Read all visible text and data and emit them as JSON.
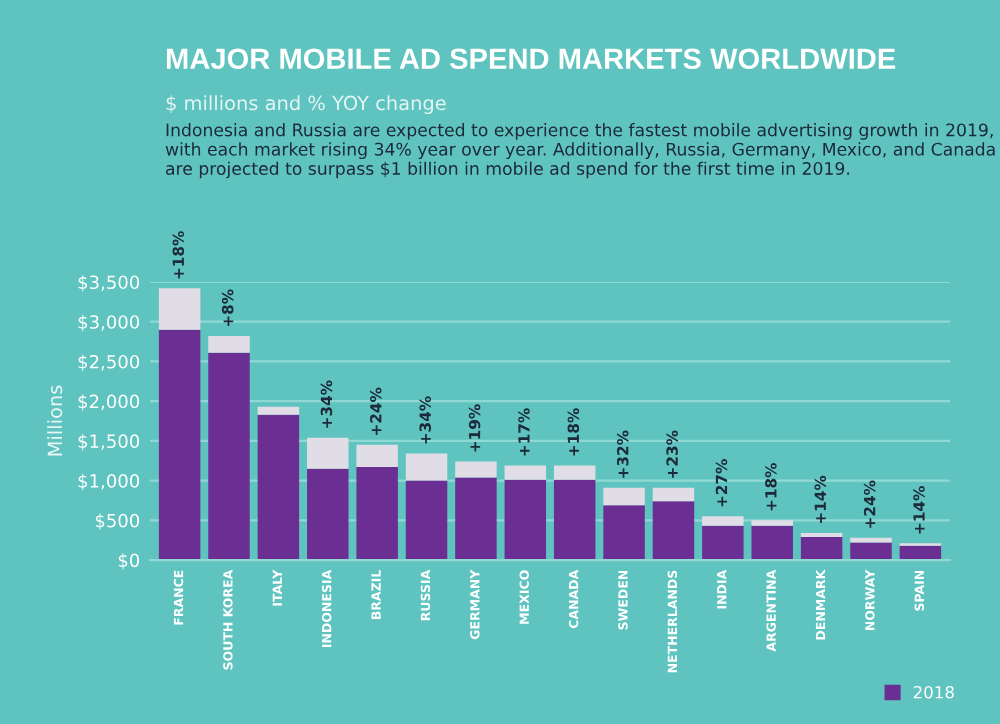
{
  "chart_data": {
    "type": "bar",
    "title": "MAJOR MOBILE AD SPEND MARKETS WORLDWIDE",
    "subtitle": "$ millions and % YOY change",
    "annotations": [
      "Indonesia and Russia are expected to experience the fastest mobile advertising growth in 2019, with each market rising 34% year over year. Additionally, Russia, Germany, Mexico, and Canada are projected to surpass $1 billion in mobile ad spend for the first time in 2019.",
      {
        "text": "+18%",
        "x": "FRANCE",
        "y": 3420
      },
      {
        "text": "+8%",
        "x": "SOUTH KOREA",
        "y": 2820
      },
      {
        "text": "+34%",
        "x": "INDONESIA",
        "y": 1540
      },
      {
        "text": "+24%",
        "x": "BRAZIL",
        "y": 1450
      },
      {
        "text": "+34%",
        "x": "RUSSIA",
        "y": 1340
      },
      {
        "text": "+19%",
        "x": "GERMANY",
        "y": 1240
      },
      {
        "text": "+17%",
        "x": "MEXICO",
        "y": 1190
      },
      {
        "text": "+18%",
        "x": "CANADA",
        "y": 1190
      },
      {
        "text": "+32%",
        "x": "SWEDEN",
        "y": 910
      },
      {
        "text": "+23%",
        "x": "NETHERLANDS",
        "y": 910
      },
      {
        "text": "+27%",
        "x": "INDIA",
        "y": 550
      },
      {
        "text": "+18%",
        "x": "ARGENTINA",
        "y": 500
      },
      {
        "text": "+14%",
        "x": "DENMARK",
        "y": 340
      },
      {
        "text": "+24%",
        "x": "NORWAY",
        "y": 280
      },
      {
        "text": "+14%",
        "x": "SPAIN",
        "y": 210
      }
    ],
    "ylabel": "Millions",
    "categories": [
      "FRANCE",
      "SOUTH KOREA",
      "ITALY",
      "INDONESIA",
      "BRAZIL",
      "RUSSIA",
      "GERMANY",
      "MEXICO",
      "CANADA",
      "SWEDEN",
      "NETHERLANDS",
      "INDIA",
      "ARGENTINA",
      "DENMARK",
      "NORWAY",
      "SPAIN"
    ],
    "series": [
      {
        "name": "2018",
        "color": "#6b2f93",
        "values": [
          2900,
          2610,
          1830,
          1150,
          1170,
          1000,
          1040,
          1010,
          1010,
          690,
          740,
          430,
          430,
          290,
          220,
          180
        ]
      },
      {
        "color": "#e1dde6",
        "values": [
          520,
          210,
          100,
          390,
          280,
          340,
          200,
          180,
          180,
          220,
          170,
          120,
          70,
          50,
          60,
          30
        ]
      }
    ],
    "stacked": true,
    "ylim": [
      0,
      3500
    ],
    "yticks": [
      {
        "value": 0,
        "label": "$0"
      },
      {
        "value": 500,
        "label": "$500"
      },
      {
        "value": 1000,
        "label": "$1,000"
      },
      {
        "value": 1500,
        "label": "$1,500"
      },
      {
        "value": 2000,
        "label": "$2,000"
      },
      {
        "value": 2500,
        "label": "$2,500"
      },
      {
        "value": 3000,
        "label": "$3,000"
      },
      {
        "value": 3500,
        "label": "$3,500"
      }
    ],
    "grid": "y",
    "legend": "bottom right"
  }
}
